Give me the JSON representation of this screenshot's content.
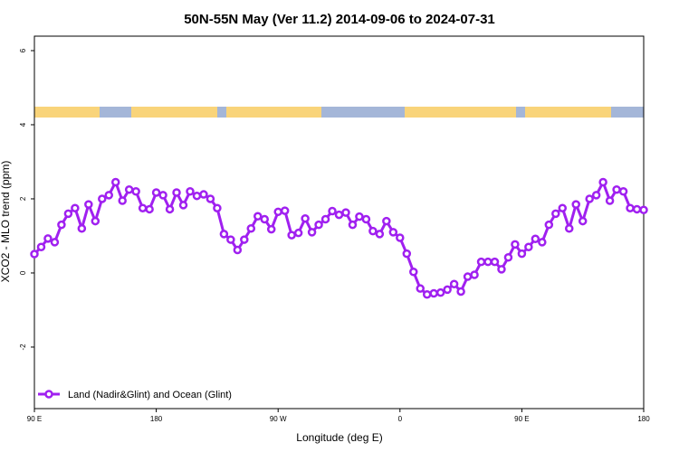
{
  "chart_data": {
    "type": "line",
    "title": "50N-55N May (Ver 11.2)   2014-09-06 to 2024-07-31",
    "x_label": "Longitude (deg E)",
    "y_label": "XCO2 - MLO trend (ppm)",
    "x": [
      90,
      95,
      100,
      105,
      110,
      115,
      120,
      125,
      130,
      135,
      140,
      145,
      150,
      155,
      160,
      165,
      170,
      175,
      180,
      185,
      190,
      195,
      200,
      205,
      210,
      215,
      220,
      225,
      230,
      235,
      240,
      245,
      250,
      255,
      260,
      265,
      270,
      275,
      280,
      285,
      290,
      295,
      300,
      305,
      310,
      315,
      320,
      325,
      330,
      335,
      340,
      345,
      350,
      355,
      360,
      365,
      370,
      375,
      380,
      385,
      390,
      395,
      400,
      405,
      410,
      415,
      420,
      425,
      430,
      435,
      440,
      445,
      450,
      455,
      460,
      465,
      470,
      475,
      480,
      485,
      490,
      495,
      500,
      505,
      510,
      515,
      520,
      525,
      530,
      535,
      540
    ],
    "series": [
      {
        "name": "Land (Nadir&Glint) and Ocean (Glint)",
        "color": "#a020f0",
        "values": [
          0.51,
          0.7,
          0.93,
          0.83,
          1.3,
          1.6,
          1.75,
          1.2,
          1.85,
          1.4,
          2.0,
          2.1,
          2.45,
          1.95,
          2.25,
          2.2,
          1.75,
          1.72,
          2.17,
          2.1,
          1.72,
          2.17,
          1.83,
          2.2,
          2.08,
          2.12,
          2.0,
          1.75,
          1.05,
          0.9,
          0.62,
          0.9,
          1.2,
          1.53,
          1.45,
          1.18,
          1.65,
          1.68,
          1.02,
          1.08,
          1.47,
          1.1,
          1.3,
          1.45,
          1.67,
          1.57,
          1.63,
          1.3,
          1.52,
          1.45,
          1.13,
          1.05,
          1.4,
          1.1,
          0.95,
          0.52,
          0.03,
          -0.42,
          -0.58,
          -0.55,
          -0.53,
          -0.45,
          -0.3,
          -0.5,
          -0.1,
          -0.05,
          0.3,
          0.3,
          0.3,
          0.1,
          0.42,
          0.77,
          0.52,
          0.7,
          0.92,
          0.83,
          1.3,
          1.6,
          1.75,
          1.2,
          1.85,
          1.4,
          2.0,
          2.1,
          2.45,
          1.95,
          2.25,
          2.2,
          1.75,
          1.72,
          1.7
        ]
      }
    ],
    "xlim": [
      90,
      540
    ],
    "xticks": [
      {
        "value": 90,
        "label": "90 E"
      },
      180,
      {
        "value": 270,
        "label": "90 W"
      },
      {
        "value": 360,
        "label": "0"
      },
      {
        "value": 450,
        "label": "90 E"
      },
      180
    ],
    "ylim": [
      -3.66,
      6.39
    ],
    "yticks": [
      -2,
      0,
      2,
      4,
      6
    ],
    "legend": "bottomleft"
  }
}
